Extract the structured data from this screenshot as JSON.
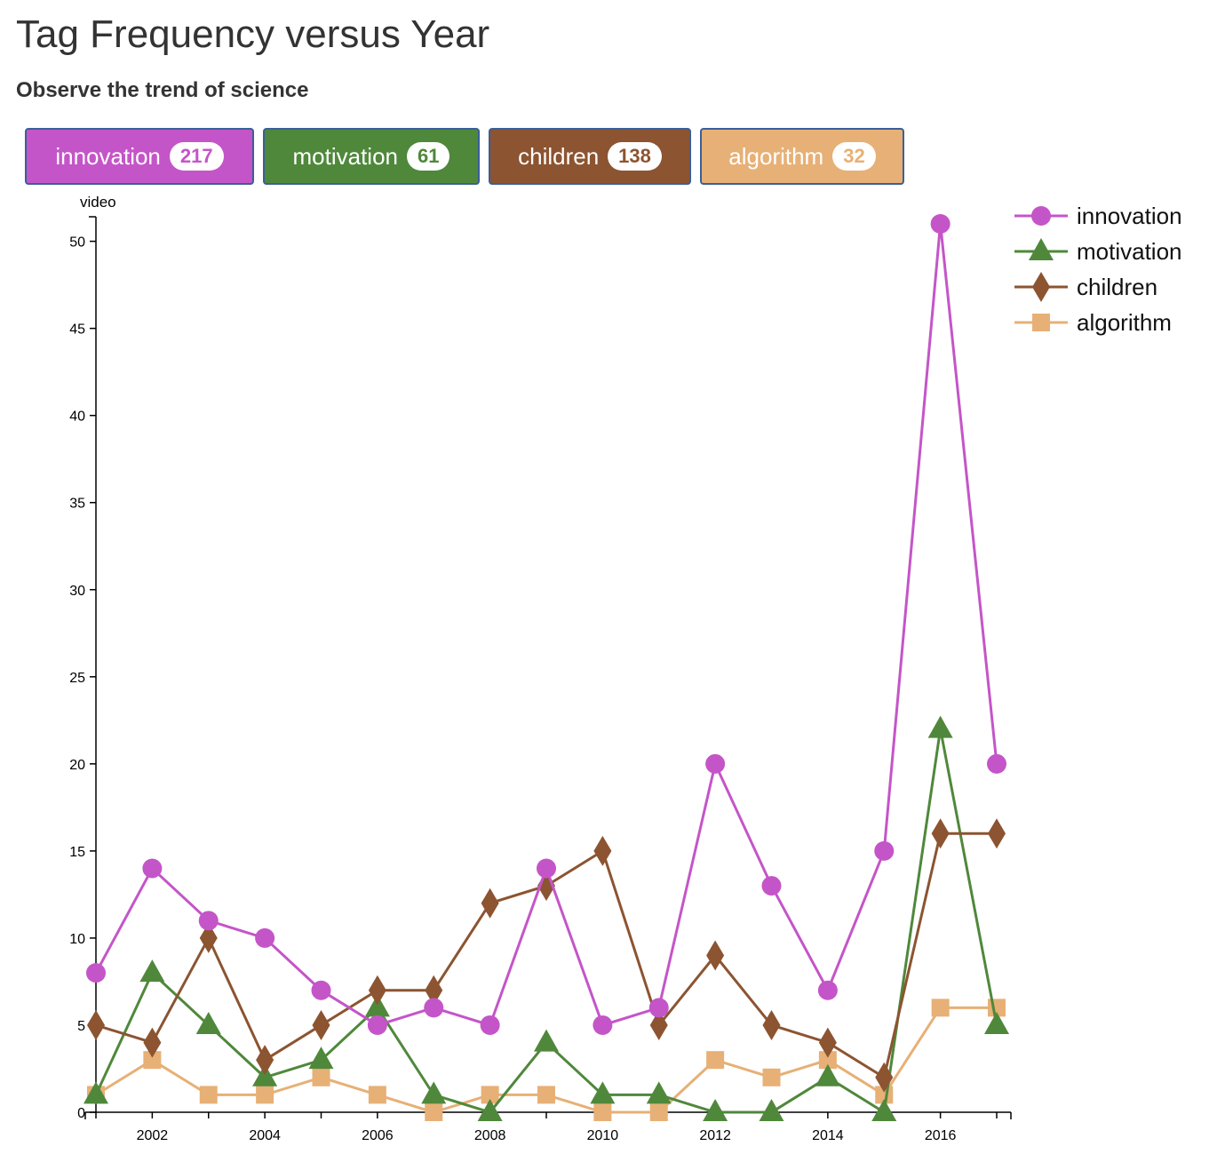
{
  "header": {
    "title": "Tag Frequency versus Year",
    "subtitle": "Observe the trend of science"
  },
  "tags": [
    {
      "label": "innovation",
      "count": "217",
      "color": "#c455c8"
    },
    {
      "label": "motivation",
      "count": "61",
      "color": "#4f883b"
    },
    {
      "label": "children",
      "count": "138",
      "color": "#8c5431"
    },
    {
      "label": "algorithm",
      "count": "32",
      "color": "#e7b076"
    }
  ],
  "chart_data": {
    "type": "line",
    "ylabel": "video",
    "x": [
      2001,
      2002,
      2003,
      2004,
      2005,
      2006,
      2007,
      2008,
      2009,
      2010,
      2011,
      2012,
      2013,
      2014,
      2015,
      2016,
      2017
    ],
    "x_ticks": [
      2002,
      2004,
      2006,
      2008,
      2010,
      2012,
      2014,
      2016
    ],
    "y_ticks": [
      0,
      5,
      10,
      15,
      20,
      25,
      30,
      35,
      40,
      45,
      50
    ],
    "xlim": [
      2001,
      2017
    ],
    "ylim": [
      0,
      52
    ],
    "legend_position": "top-right",
    "series": [
      {
        "name": "innovation",
        "color": "#c455c8",
        "marker": "circle",
        "values": [
          8,
          14,
          11,
          10,
          7,
          5,
          6,
          5,
          14,
          5,
          6,
          20,
          13,
          7,
          15,
          51,
          20
        ]
      },
      {
        "name": "motivation",
        "color": "#4f883b",
        "marker": "triangle",
        "values": [
          1,
          8,
          5,
          2,
          3,
          6,
          1,
          0,
          4,
          1,
          1,
          0,
          0,
          2,
          0,
          22,
          5
        ]
      },
      {
        "name": "children",
        "color": "#8c5431",
        "marker": "diamond",
        "values": [
          5,
          4,
          10,
          3,
          5,
          7,
          7,
          12,
          13,
          15,
          5,
          9,
          5,
          4,
          2,
          16,
          16
        ]
      },
      {
        "name": "algorithm",
        "color": "#e7b076",
        "marker": "square",
        "values": [
          1,
          3,
          1,
          1,
          2,
          1,
          0,
          1,
          1,
          0,
          0,
          3,
          2,
          3,
          1,
          6,
          6
        ]
      }
    ]
  }
}
